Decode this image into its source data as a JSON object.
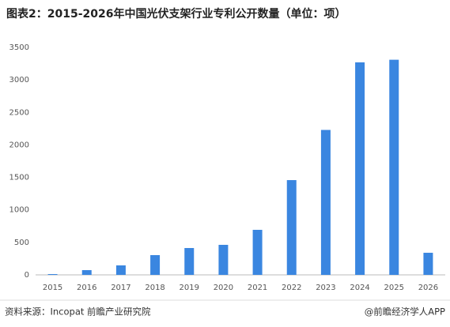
{
  "chart_data": {
    "type": "bar",
    "title": "图表2：2015-2026年中国光伏支架行业专利公开数量（单位：项）",
    "categories": [
      "2015",
      "2016",
      "2017",
      "2018",
      "2019",
      "2020",
      "2021",
      "2022",
      "2023",
      "2024",
      "2025",
      "2026"
    ],
    "values": [
      12,
      73,
      146,
      304,
      413,
      462,
      693,
      1458,
      2230,
      3270,
      3310,
      340
    ],
    "color": "#3a86e0",
    "ylim": [
      0,
      3500
    ],
    "yticks": [
      0,
      500,
      1000,
      1500,
      2000,
      2500,
      3000,
      3500
    ],
    "grid": false,
    "source": "资料来源：Incopat 前瞻产业研究院",
    "credit": "@前瞻经济学人APP"
  }
}
